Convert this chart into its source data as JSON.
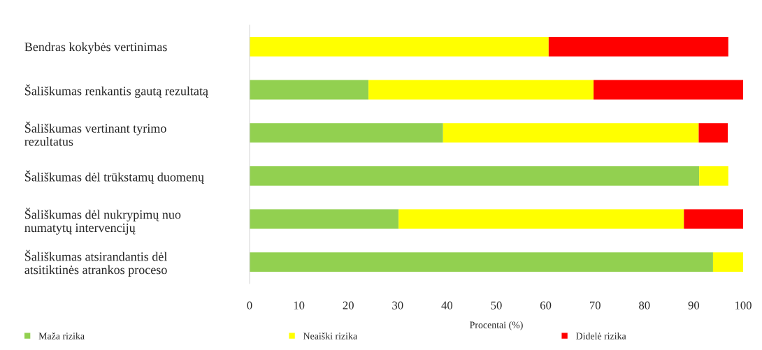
{
  "chart_data": {
    "type": "bar",
    "orientation": "horizontal",
    "stacked": true,
    "xlabel": "Procentai (%)",
    "categories": [
      "Bendras kokybės vertinimas",
      "Šališkumas renkantis gautą rezultatą",
      "Šališkumas vertinant tyrimo\nrezultatus",
      "Šališkumas dėl trūkstamų duomenų",
      "Šališkumas dėl nukrypimų nuo\nnumatytų intervencijų",
      "Šališkumas atsirandantis dėl\natsitiktinės atrankos proceso"
    ],
    "series": [
      {
        "name": "Maža rizika",
        "color": "#92d050",
        "values": [
          0,
          24.1,
          39.2,
          91.1,
          30.2,
          93.9
        ]
      },
      {
        "name": "Neaiški rizika",
        "color": "#ffff00",
        "values": [
          60.6,
          45.6,
          51.8,
          5.9,
          57.8,
          6.1
        ]
      },
      {
        "name": "Didelė rizika",
        "color": "#ff0000",
        "values": [
          36.4,
          30.3,
          5.9,
          0,
          12.0,
          0
        ]
      }
    ],
    "xlim": [
      0,
      100
    ],
    "xticks": [
      0,
      10,
      20,
      30,
      40,
      50,
      60,
      70,
      80,
      90,
      100
    ],
    "grid": false,
    "legend": "bottom"
  }
}
